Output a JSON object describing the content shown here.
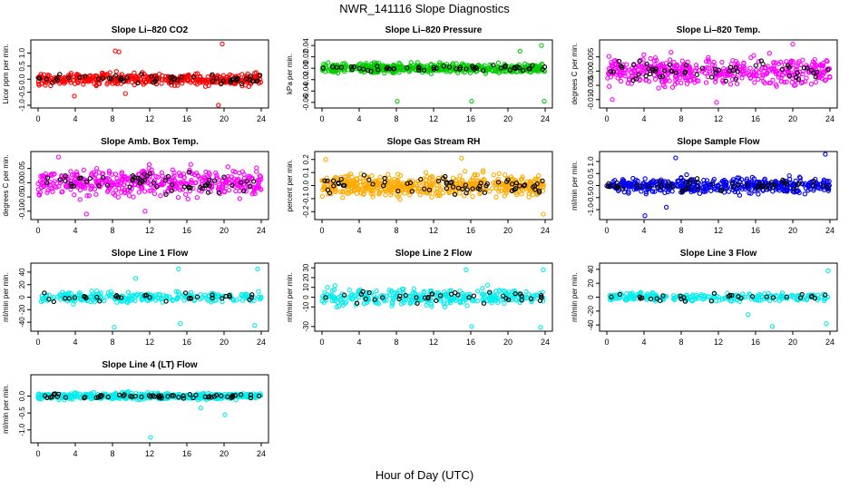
{
  "title": "NWR_141116  Slope Diagnostics",
  "xlabel": "Hour of Day (UTC)",
  "x_ticks": [
    0,
    4,
    8,
    12,
    16,
    20,
    24
  ],
  "chart_data": [
    {
      "type": "scatter",
      "title": "Slope Li–820 CO2",
      "ylabel": "Licor ppm per min.",
      "color": "#ff0000",
      "ylim": [
        -1.0,
        1.4
      ],
      "yticks": [
        -1.0,
        -0.5,
        0.0,
        0.5,
        1.0
      ],
      "ytick_labels": [
        "-1.0",
        "-0.5",
        "0.0",
        "0.5",
        "1.0"
      ],
      "xlim": [
        0,
        24
      ],
      "spread": 0.22,
      "n": 420,
      "outliers": [
        [
          8.3,
          1.08
        ],
        [
          8.7,
          1.05
        ],
        [
          19.8,
          1.35
        ],
        [
          19.4,
          -1.0
        ],
        [
          3.9,
          -0.65
        ],
        [
          9.4,
          -0.55
        ]
      ]
    },
    {
      "type": "scatter",
      "title": "Slope Li–820 Pressure",
      "ylabel": "kPa per min.",
      "color": "#00cc00",
      "ylim": [
        -0.065,
        0.045
      ],
      "yticks": [
        -0.06,
        -0.04,
        -0.02,
        0.0,
        0.02,
        0.04
      ],
      "ytick_labels": [
        "-0.06",
        "-0.04",
        "-0.02",
        "0.00",
        "0.02",
        "0.04"
      ],
      "xlim": [
        0,
        24
      ],
      "spread": 0.008,
      "n": 420,
      "outliers": [
        [
          8.1,
          -0.058
        ],
        [
          16.1,
          -0.058
        ],
        [
          23.9,
          -0.058
        ],
        [
          23.6,
          0.04
        ],
        [
          21.3,
          0.03
        ]
      ]
    },
    {
      "type": "scatter",
      "title": "Slope Li–820 Temp.",
      "ylabel": "degrees C per min.",
      "color": "#ff00ff",
      "ylim": [
        -0.012,
        0.01
      ],
      "yticks": [
        -0.01,
        -0.005,
        0.0,
        0.005
      ],
      "ytick_labels": [
        "-0.010",
        "-0.005",
        "0.000",
        "0.005"
      ],
      "xlim": [
        0,
        24
      ],
      "spread": 0.0045,
      "n": 460,
      "outliers": [
        [
          0.6,
          -0.01
        ],
        [
          20.0,
          0.0095
        ],
        [
          11.8,
          -0.011
        ]
      ]
    },
    {
      "type": "scatter",
      "title": "Slope Amb. Box Temp.",
      "ylabel": "degrees C per min.",
      "color": "#ff00ff",
      "ylim": [
        -0.12,
        0.1
      ],
      "yticks": [
        -0.1,
        -0.05,
        0.0,
        0.05
      ],
      "ytick_labels": [
        "-0.10",
        "-0.05",
        "0.00",
        "0.05"
      ],
      "xlim": [
        0,
        24
      ],
      "spread": 0.045,
      "n": 460,
      "outliers": [
        [
          2.2,
          0.09
        ],
        [
          5.2,
          -0.11
        ],
        [
          11.5,
          -0.1
        ]
      ]
    },
    {
      "type": "scatter",
      "title": "Slope Gas Stream RH",
      "ylabel": "percent per min.",
      "color": "#ffaa00",
      "ylim": [
        -0.24,
        0.24
      ],
      "yticks": [
        -0.2,
        -0.1,
        0.0,
        0.1,
        0.2
      ],
      "ytick_labels": [
        "-0.2",
        "-0.1",
        "0.0",
        "0.1",
        "0.2"
      ],
      "xlim": [
        0,
        24
      ],
      "spread": 0.08,
      "n": 520,
      "outliers": [
        [
          0.4,
          0.2
        ],
        [
          23.8,
          -0.22
        ],
        [
          15.0,
          0.21
        ]
      ]
    },
    {
      "type": "scatter",
      "title": "Slope Sample Flow",
      "ylabel": "ml/min per min.",
      "color": "#0000ee",
      "ylim": [
        -1.3,
        1.3
      ],
      "yticks": [
        -1.0,
        -0.5,
        0.0,
        0.5,
        1.0
      ],
      "ytick_labels": [
        "-1.0",
        "-0.5",
        "0.0",
        "0.5",
        "1.0"
      ],
      "xlim": [
        0,
        24
      ],
      "spread": 0.3,
      "n": 440,
      "outliers": [
        [
          7.4,
          1.15
        ],
        [
          23.5,
          1.3
        ],
        [
          4.1,
          -1.25
        ],
        [
          6.4,
          -0.9
        ]
      ]
    },
    {
      "type": "scatter",
      "title": "Slope Line 1 Flow",
      "ylabel": "ml/min per min.",
      "color": "#00eeee",
      "ylim": [
        -50,
        50
      ],
      "yticks": [
        -40,
        -20,
        0,
        20,
        40
      ],
      "ytick_labels": [
        "-40",
        "-20",
        "0",
        "20",
        "40"
      ],
      "xlim": [
        0,
        24
      ],
      "spread": 8,
      "n": 260,
      "outliers": [
        [
          15.1,
          45
        ],
        [
          23.6,
          45
        ],
        [
          8.2,
          -48
        ],
        [
          15.3,
          -42
        ],
        [
          23.3,
          -45
        ],
        [
          10.5,
          30
        ]
      ]
    },
    {
      "type": "scatter",
      "title": "Slope Line 2 Flow",
      "ylabel": "ml/min per min.",
      "color": "#00eeee",
      "ylim": [
        -32,
        32
      ],
      "yticks": [
        -30,
        -10,
        0,
        10,
        20,
        30
      ],
      "ytick_labels": [
        "-30",
        "-10",
        "0",
        "10",
        "20",
        "30"
      ],
      "xlim": [
        0,
        24
      ],
      "spread": 8,
      "n": 320,
      "outliers": [
        [
          15.5,
          28
        ],
        [
          16.1,
          -30
        ],
        [
          23.8,
          28
        ],
        [
          23.5,
          -31
        ]
      ]
    },
    {
      "type": "scatter",
      "title": "Slope Line 3 Flow",
      "ylabel": "ml/min per min.",
      "color": "#00eeee",
      "ylim": [
        -45,
        45
      ],
      "yticks": [
        -40,
        -20,
        0,
        20,
        40
      ],
      "ytick_labels": [
        "-40",
        "-20",
        "0",
        "20",
        "40"
      ],
      "xlim": [
        0,
        24
      ],
      "spread": 6,
      "n": 240,
      "outliers": [
        [
          23.8,
          38
        ],
        [
          23.6,
          -38
        ],
        [
          17.8,
          -42
        ],
        [
          15.2,
          -25
        ]
      ]
    },
    {
      "type": "scatter",
      "title": "Slope Line 4 (LT) Flow",
      "ylabel": "ml/min per min.",
      "color": "#00eeee",
      "ylim": [
        -1.3,
        0.55
      ],
      "yticks": [
        -1.0,
        -0.5,
        0.0
      ],
      "ytick_labels": [
        "-1.0",
        "-0.5",
        "0.0"
      ],
      "xlim": [
        0,
        24
      ],
      "spread": 0.09,
      "n": 480,
      "outliers": [
        [
          12.1,
          -1.22
        ],
        [
          20.1,
          -0.55
        ],
        [
          17.5,
          -0.35
        ]
      ]
    }
  ]
}
